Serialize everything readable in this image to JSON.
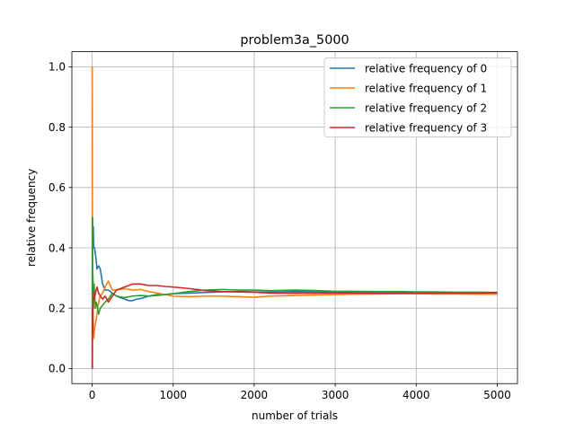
{
  "chart_data": {
    "type": "line",
    "title": "problem3a_5000",
    "xlabel": "number of trials",
    "ylabel": "relative frequency",
    "xlim": [
      -250,
      5250
    ],
    "ylim": [
      -0.05,
      1.05
    ],
    "xticks": [
      0,
      1000,
      2000,
      3000,
      4000,
      5000
    ],
    "yticks": [
      0.0,
      0.2,
      0.4,
      0.6,
      0.8,
      1.0
    ],
    "xtick_labels": [
      "0",
      "1000",
      "2000",
      "3000",
      "4000",
      "5000"
    ],
    "ytick_labels": [
      "0.0",
      "0.2",
      "0.4",
      "0.6",
      "0.8",
      "1.0"
    ],
    "grid": true,
    "legend_position": "top-right",
    "series": [
      {
        "name": "relative frequency of 0",
        "color": "#1f77b4",
        "x": [
          1,
          3,
          6,
          10,
          15,
          20,
          30,
          40,
          50,
          60,
          80,
          100,
          130,
          160,
          200,
          250,
          300,
          350,
          400,
          450,
          500,
          550,
          600,
          700,
          800,
          900,
          1000,
          1200,
          1400,
          1600,
          1800,
          2000,
          2200,
          2500,
          2800,
          3000,
          3200,
          3500,
          3800,
          4000,
          4200,
          4500,
          4800,
          5000
        ],
        "y": [
          0.0,
          0.33,
          0.5,
          0.4,
          0.47,
          0.4,
          0.4,
          0.38,
          0.36,
          0.33,
          0.34,
          0.33,
          0.28,
          0.26,
          0.26,
          0.25,
          0.24,
          0.235,
          0.23,
          0.225,
          0.225,
          0.23,
          0.232,
          0.24,
          0.245,
          0.245,
          0.248,
          0.25,
          0.252,
          0.254,
          0.255,
          0.254,
          0.253,
          0.255,
          0.254,
          0.253,
          0.252,
          0.252,
          0.251,
          0.25,
          0.25,
          0.25,
          0.25,
          0.25
        ]
      },
      {
        "name": "relative frequency of 1",
        "color": "#ff7f0e",
        "x": [
          1,
          3,
          5,
          8,
          12,
          16,
          20,
          30,
          40,
          50,
          60,
          80,
          100,
          130,
          160,
          200,
          250,
          300,
          400,
          500,
          600,
          700,
          800,
          900,
          1000,
          1200,
          1400,
          1600,
          1800,
          2000,
          2200,
          2500,
          2800,
          3000,
          3200,
          3500,
          3800,
          4000,
          4200,
          4500,
          4800,
          5000
        ],
        "y": [
          1.0,
          0.67,
          0.4,
          0.25,
          0.17,
          0.12,
          0.1,
          0.13,
          0.15,
          0.16,
          0.18,
          0.22,
          0.24,
          0.25,
          0.27,
          0.29,
          0.26,
          0.26,
          0.265,
          0.26,
          0.262,
          0.255,
          0.25,
          0.245,
          0.24,
          0.238,
          0.24,
          0.24,
          0.238,
          0.236,
          0.24,
          0.242,
          0.244,
          0.245,
          0.246,
          0.247,
          0.248,
          0.248,
          0.247,
          0.247,
          0.246,
          0.246
        ]
      },
      {
        "name": "relative frequency of 2",
        "color": "#2ca02c",
        "x": [
          1,
          2,
          4,
          6,
          10,
          15,
          20,
          25,
          30,
          40,
          50,
          60,
          80,
          100,
          130,
          160,
          200,
          250,
          300,
          400,
          500,
          600,
          700,
          800,
          1000,
          1200,
          1400,
          1600,
          1800,
          2000,
          2200,
          2500,
          2800,
          3000,
          3200,
          3500,
          3800,
          4000,
          4200,
          4500,
          4800,
          5000
        ],
        "y": [
          0.0,
          0.5,
          0.5,
          0.33,
          0.3,
          0.27,
          0.25,
          0.28,
          0.25,
          0.2,
          0.22,
          0.21,
          0.18,
          0.2,
          0.21,
          0.22,
          0.23,
          0.25,
          0.24,
          0.235,
          0.24,
          0.242,
          0.24,
          0.242,
          0.248,
          0.255,
          0.26,
          0.262,
          0.26,
          0.26,
          0.258,
          0.26,
          0.258,
          0.256,
          0.256,
          0.255,
          0.255,
          0.254,
          0.254,
          0.253,
          0.253,
          0.252
        ]
      },
      {
        "name": "relative frequency of 3",
        "color": "#d62728",
        "x": [
          1,
          3,
          5,
          8,
          10,
          15,
          20,
          30,
          40,
          50,
          60,
          80,
          100,
          130,
          160,
          200,
          250,
          300,
          350,
          400,
          450,
          500,
          600,
          700,
          800,
          900,
          1000,
          1200,
          1400,
          1600,
          1800,
          2000,
          2200,
          2500,
          2800,
          3000,
          3200,
          3500,
          3800,
          4000,
          4200,
          4500,
          4800,
          5000
        ],
        "y": [
          0.0,
          0.0,
          0.2,
          0.12,
          0.2,
          0.2,
          0.25,
          0.23,
          0.25,
          0.26,
          0.27,
          0.25,
          0.24,
          0.23,
          0.24,
          0.22,
          0.24,
          0.26,
          0.265,
          0.27,
          0.275,
          0.28,
          0.28,
          0.275,
          0.275,
          0.272,
          0.27,
          0.265,
          0.258,
          0.255,
          0.254,
          0.253,
          0.25,
          0.25,
          0.25,
          0.25,
          0.25,
          0.249,
          0.249,
          0.249,
          0.25,
          0.25,
          0.25,
          0.252
        ]
      }
    ]
  }
}
